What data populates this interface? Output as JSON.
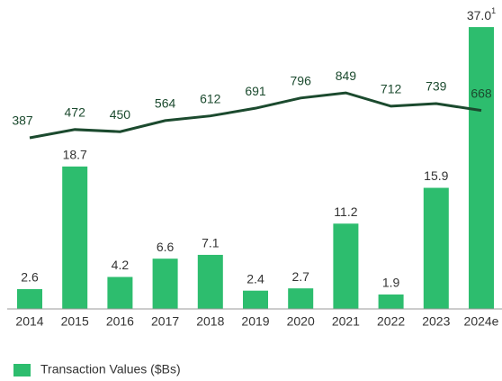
{
  "chart_data": {
    "type": "bar",
    "categories": [
      "2014",
      "2015",
      "2016",
      "2017",
      "2018",
      "2019",
      "2020",
      "2021",
      "2022",
      "2023",
      "2024e"
    ],
    "series": [
      {
        "name": "Transaction Values ($Bs)",
        "type": "bar",
        "color": "#2dbd6e",
        "values": [
          2.6,
          18.7,
          4.2,
          6.6,
          7.1,
          2.4,
          2.7,
          11.2,
          1.9,
          15.9,
          37.0
        ],
        "value_labels": [
          "2.6",
          "18.7",
          "4.2",
          "6.6",
          "7.1",
          "2.4",
          "2.7",
          "11.2",
          "1.9",
          "15.9",
          "37.0"
        ]
      },
      {
        "type": "line",
        "axis": "y2",
        "color": "#1b4a2e",
        "values": [
          387,
          472,
          450,
          564,
          612,
          691,
          796,
          849,
          712,
          739,
          668
        ]
      }
    ],
    "annotations": [
      {
        "category": "2024e",
        "text": "1"
      }
    ],
    "ylim": [
      0,
      37.6
    ],
    "y2lim": [
      -1372,
      1572
    ],
    "legend": "bottom-left"
  }
}
